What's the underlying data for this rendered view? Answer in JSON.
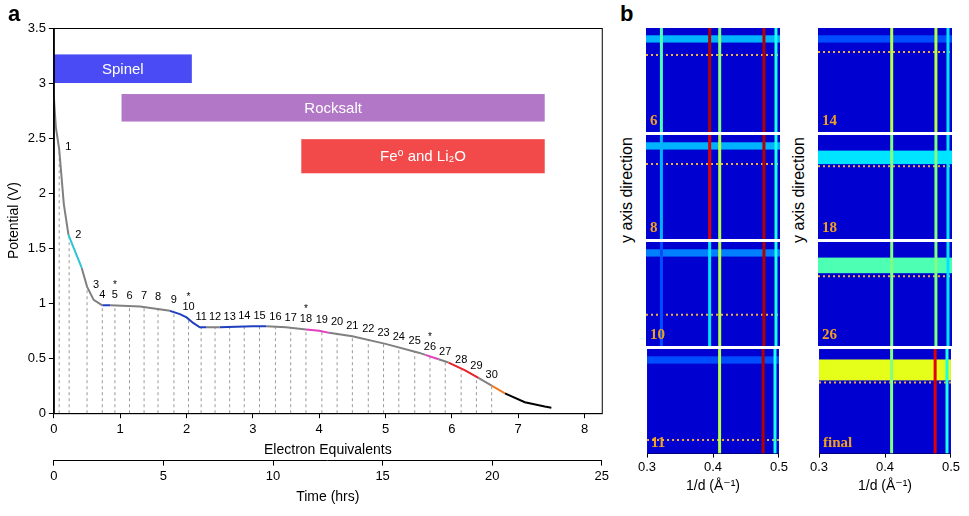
{
  "chart_data": [
    {
      "type": "line",
      "panel": "a",
      "xlabel": "Electron Equivalents",
      "x2label": "Time (hrs)",
      "ylabel": "Potential (V)",
      "xlim": [
        0,
        8.26
      ],
      "xticks": [
        0,
        1,
        2,
        3,
        4,
        5,
        6,
        7,
        8
      ],
      "x2lim": [
        0,
        25
      ],
      "x2ticks": [
        0,
        5,
        10,
        15,
        20,
        25
      ],
      "ylim": [
        0,
        3.5
      ],
      "yticks": [
        0,
        0.5,
        1,
        1.5,
        2,
        2.5,
        3,
        3.5
      ],
      "grid": false,
      "series": [
        {
          "color": "#808080",
          "x": [
            0,
            0.03,
            0.08,
            0.15,
            0.22
          ],
          "values": [
            2.87,
            2.6,
            2.4,
            1.9,
            1.62
          ]
        },
        {
          "color": "#2ec4d6",
          "x": [
            0.22,
            0.3,
            0.42
          ],
          "values": [
            1.62,
            1.5,
            1.32
          ]
        },
        {
          "color": "#808080",
          "x": [
            0.42,
            0.5,
            0.6,
            0.73
          ],
          "values": [
            1.32,
            1.15,
            1.03,
            0.98
          ]
        },
        {
          "color": "#1f3fbf",
          "x": [
            0.73,
            0.85
          ],
          "values": [
            0.98,
            0.98
          ]
        },
        {
          "color": "#808080",
          "x": [
            0.85,
            1.3,
            1.75
          ],
          "values": [
            0.98,
            0.97,
            0.93
          ]
        },
        {
          "color": "#1f3fbf",
          "x": [
            1.75,
            1.9,
            2.0,
            2.1,
            2.2,
            2.3
          ],
          "values": [
            0.93,
            0.9,
            0.87,
            0.82,
            0.78,
            0.78
          ]
        },
        {
          "color": "#808080",
          "x": [
            2.3,
            2.5
          ],
          "values": [
            0.78,
            0.78
          ]
        },
        {
          "color": "#1f3fbf",
          "x": [
            2.5,
            3.0,
            3.2
          ],
          "values": [
            0.78,
            0.79,
            0.79
          ]
        },
        {
          "color": "#808080",
          "x": [
            3.2,
            3.5,
            3.8
          ],
          "values": [
            0.79,
            0.78,
            0.76
          ]
        },
        {
          "color": "#e040c0",
          "x": [
            3.8,
            4.0,
            4.15
          ],
          "values": [
            0.76,
            0.75,
            0.73
          ]
        },
        {
          "color": "#808080",
          "x": [
            4.15,
            4.5,
            5.0,
            5.5,
            5.6
          ],
          "values": [
            0.73,
            0.7,
            0.63,
            0.55,
            0.53
          ]
        },
        {
          "color": "#e040c0",
          "x": [
            5.6,
            5.8
          ],
          "values": [
            0.53,
            0.49
          ]
        },
        {
          "color": "#808080",
          "x": [
            5.8,
            5.95
          ],
          "values": [
            0.49,
            0.46
          ]
        },
        {
          "color": "#e8202a",
          "x": [
            5.95,
            6.2,
            6.4
          ],
          "values": [
            0.46,
            0.39,
            0.32
          ]
        },
        {
          "color": "#808080",
          "x": [
            6.4,
            6.6
          ],
          "values": [
            0.32,
            0.25
          ]
        },
        {
          "color": "#f07a20",
          "x": [
            6.6,
            6.8
          ],
          "values": [
            0.25,
            0.18
          ]
        },
        {
          "color": "#000000",
          "x": [
            6.8,
            7.1,
            7.4,
            7.5
          ],
          "values": [
            0.18,
            0.1,
            0.06,
            0.05
          ]
        }
      ],
      "phases": [
        {
          "label": "Spinel",
          "start": 0,
          "end": 2.08,
          "low": 3.0,
          "high": 3.26,
          "color": "#4b4bf5"
        },
        {
          "label": "Rocksalt",
          "start": 1.02,
          "end": 7.4,
          "low": 2.65,
          "high": 2.9,
          "color": "#b277c6"
        },
        {
          "label": "Fe⁰ and Li₂O",
          "start": 3.73,
          "end": 7.4,
          "low": 2.18,
          "high": 2.49,
          "color": "#f24a4a"
        }
      ],
      "scans": {
        "labels": [
          "1",
          "2",
          "3",
          "4",
          "5",
          "6",
          "7",
          "8",
          "9",
          "10",
          "11",
          "12",
          "13",
          "14",
          "15",
          "16",
          "17",
          "18",
          "19",
          "20",
          "21",
          "22",
          "23",
          "24",
          "25",
          "26",
          "27",
          "28",
          "29",
          "30"
        ],
        "x": [
          0.08,
          0.23,
          0.5,
          0.73,
          0.92,
          1.14,
          1.36,
          1.57,
          1.81,
          2.03,
          2.22,
          2.43,
          2.65,
          2.87,
          3.1,
          3.34,
          3.57,
          3.8,
          4.04,
          4.27,
          4.5,
          4.74,
          4.97,
          5.2,
          5.44,
          5.67,
          5.9,
          6.14,
          6.37,
          6.6
        ],
        "values": [
          2.4,
          1.6,
          1.15,
          0.98,
          0.98,
          0.97,
          0.97,
          0.96,
          0.93,
          0.87,
          0.78,
          0.78,
          0.78,
          0.79,
          0.79,
          0.78,
          0.77,
          0.76,
          0.75,
          0.73,
          0.7,
          0.67,
          0.63,
          0.6,
          0.56,
          0.51,
          0.46,
          0.39,
          0.33,
          0.25
        ],
        "starred": [
          "5",
          "10",
          "18",
          "26"
        ],
        "star_symbol": "*"
      }
    },
    {
      "type": "heatmap",
      "panel": "b",
      "xlabel": "1/d (Å⁻¹)",
      "ylabel": "y axis direction",
      "xlim": [
        0.3,
        0.5
      ],
      "xticks": [
        0.3,
        0.4,
        0.5
      ],
      "ylim": [
        0,
        1
      ],
      "tick_labels": "x",
      "subplots": [
        {
          "label": "6",
          "peaks": {
            "x": [
              0.323,
              0.395,
              0.41,
              0.476,
              0.494
            ],
            "intensity": [
              0.45,
              0.95,
              0.5,
              0.95,
              0.4
            ]
          },
          "surface_band": {
            "from": 0.86,
            "to": 0.93,
            "intensity": 0.3
          },
          "interface": 0.74
        },
        {
          "label": "8",
          "peaks": {
            "x": [
              0.323,
              0.395,
              0.41,
              0.476,
              0.494
            ],
            "intensity": [
              0.3,
              0.9,
              0.55,
              0.95,
              0.4
            ]
          },
          "surface_band": {
            "from": 0.86,
            "to": 0.93,
            "intensity": 0.3
          },
          "interface": 0.72
        },
        {
          "label": "10",
          "peaks": {
            "x": [
              0.323,
              0.395,
              0.41,
              0.476,
              0.494
            ],
            "intensity": [
              0.2,
              0.35,
              0.55,
              0.95,
              0.4
            ]
          },
          "surface_band": {
            "from": 0.86,
            "to": 0.93,
            "intensity": 0.25
          },
          "interface": 0.3
        },
        {
          "label": "11",
          "peaks": {
            "x": [
              0.41,
              0.476,
              0.494
            ],
            "intensity": [
              0.55,
              0.95,
              0.4
            ]
          },
          "surface_band": {
            "from": 0.86,
            "to": 0.93,
            "intensity": 0.2
          },
          "interface": 0.13
        },
        {
          "label": "14",
          "peaks": {
            "x": [
              0.41,
              0.476,
              0.494
            ],
            "intensity": [
              0.55,
              0.55,
              0.35
            ]
          },
          "surface_band": {
            "from": 0.86,
            "to": 0.93,
            "intensity": 0.2
          },
          "interface": 0.77
        },
        {
          "label": "18",
          "peaks": {
            "x": [
              0.41,
              0.476,
              0.494
            ],
            "intensity": [
              0.5,
              0.5,
              0.35
            ]
          },
          "surface_band": {
            "from": 0.72,
            "to": 0.85,
            "intensity": 0.35
          },
          "interface": 0.7
        },
        {
          "label": "26",
          "peaks": {
            "x": [
              0.41,
              0.476,
              0.494
            ],
            "intensity": [
              0.5,
              0.5,
              0.35
            ]
          },
          "surface_band": {
            "from": 0.7,
            "to": 0.85,
            "intensity": 0.45
          },
          "interface": 0.67
        },
        {
          "label": "final",
          "peaks": {
            "x": [
              0.41,
              0.476,
              0.494
            ],
            "intensity": [
              0.5,
              0.9,
              0.4
            ]
          },
          "surface_band": {
            "from": 0.7,
            "to": 0.9,
            "intensity": 0.6
          },
          "interface": 0.68
        }
      ]
    }
  ]
}
